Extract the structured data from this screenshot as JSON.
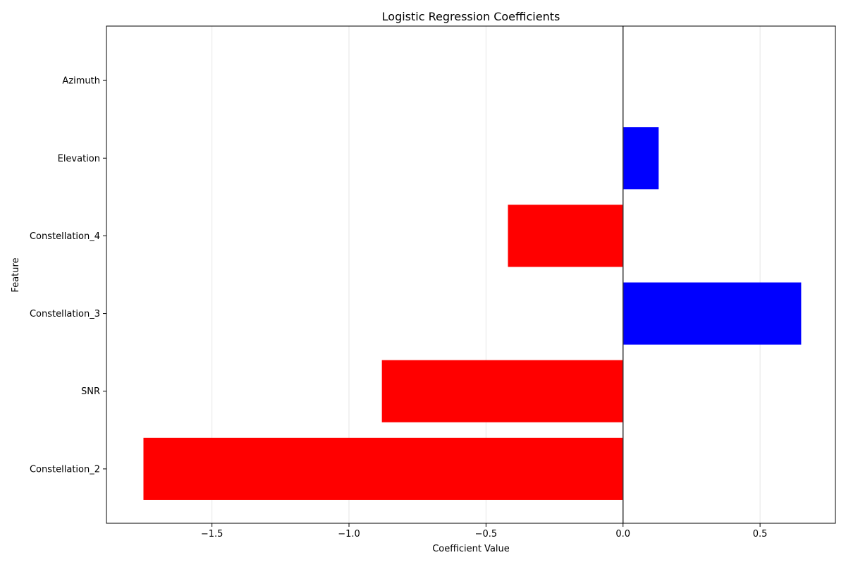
{
  "chart_data": {
    "type": "bar",
    "orientation": "horizontal",
    "title": "Logistic Regression Coefficients",
    "xlabel": "Coefficient Value",
    "ylabel": "Feature",
    "categories": [
      "Constellation_2",
      "SNR",
      "Constellation_3",
      "Constellation_4",
      "Elevation",
      "Azimuth"
    ],
    "values": [
      -1.75,
      -0.88,
      0.65,
      -0.42,
      0.13,
      0.0
    ],
    "x_ticks": [
      -1.5,
      -1.0,
      -0.5,
      0.0,
      0.5
    ],
    "x_tick_labels": [
      "−1.5",
      "−1.0",
      "−0.5",
      "0.0",
      "0.5"
    ],
    "xlim": [
      -1.885,
      0.775
    ],
    "grid": "x",
    "zero_line": true,
    "colors": {
      "positive": "#0000ff",
      "negative": "#ff0000",
      "zero_line": "#333333",
      "grid": "#e6e6e6",
      "axes": "#000000"
    }
  }
}
